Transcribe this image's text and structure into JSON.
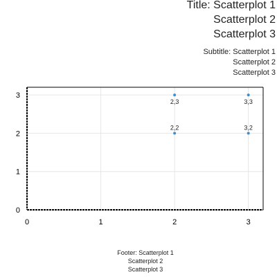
{
  "chart_data": {
    "type": "scatter",
    "title_lines": [
      "Title: Scatterplot 1",
      "Scatterplot 2",
      "Scatterplot 3"
    ],
    "subtitle_lines": [
      "Subtitle: Scatterplot 1",
      "Scatterplot 2",
      "Scatterplot 3"
    ],
    "footer_lines": [
      "Footer: Scatterplot 1",
      "Scatterplot 2",
      "Scatterplot 3"
    ],
    "xlabel": "",
    "ylabel": "",
    "xlim": [
      0,
      3.2
    ],
    "ylim": [
      0,
      3.2
    ],
    "x_ticks": [
      0,
      1,
      2,
      3
    ],
    "y_ticks": [
      0,
      1,
      2,
      3
    ],
    "grid": true,
    "legend": "none",
    "point_color": "#3d8fd1",
    "points": [
      {
        "x": 2,
        "y": 3,
        "label": "2,3"
      },
      {
        "x": 3,
        "y": 3,
        "label": "3,3"
      },
      {
        "x": 2,
        "y": 2,
        "label": "2,2"
      },
      {
        "x": 3,
        "y": 2,
        "label": "3,2"
      }
    ]
  }
}
